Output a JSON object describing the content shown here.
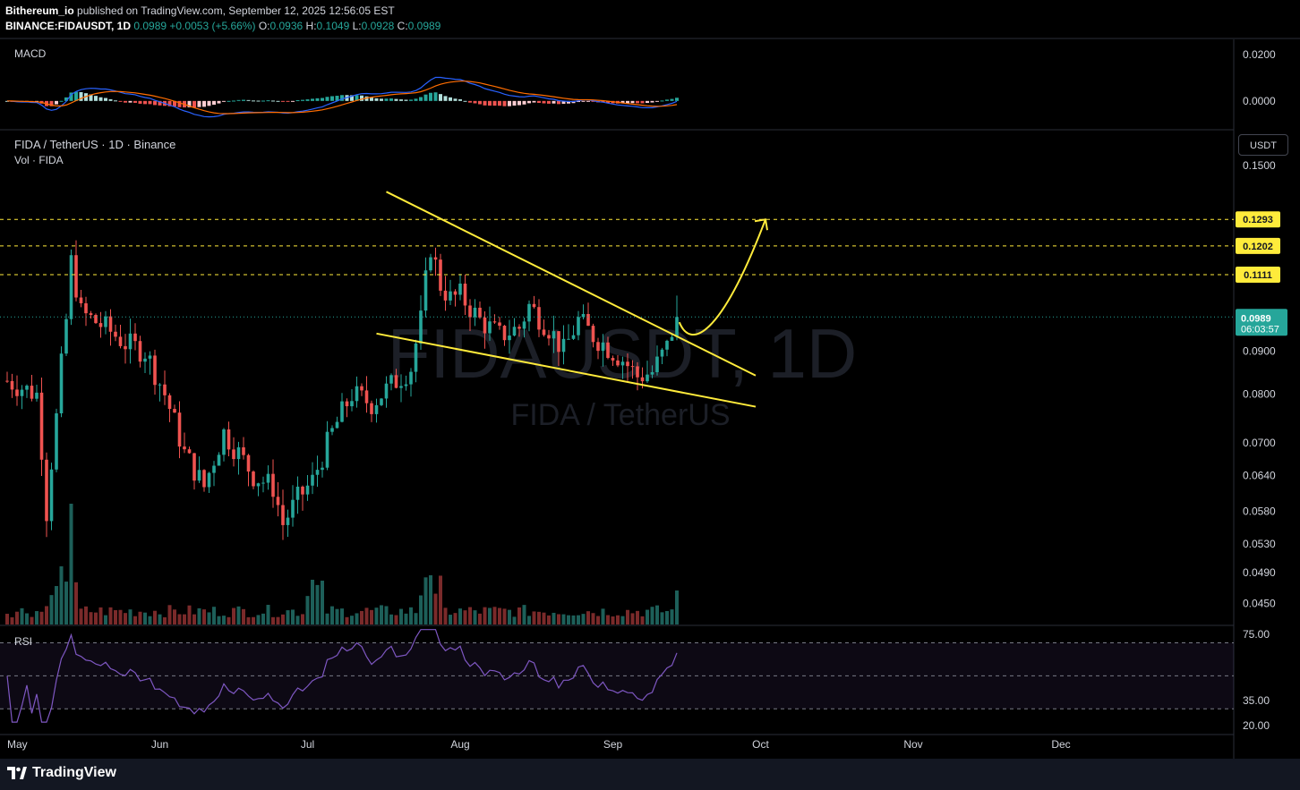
{
  "header": {
    "publisher": "Bithereum_io",
    "published_text": " published on TradingView.com, September 12, 2025 12:56:05 EST",
    "symbol": "BINANCE:FIDAUSDT, 1D",
    "last": "0.0989",
    "change": "+0.0053 (+5.66%)",
    "o_label": "O:",
    "o": "0.0936",
    "h_label": "H:",
    "h": "0.1049",
    "l_label": "L:",
    "l": "0.0928",
    "c_label": "C:",
    "c": "0.0989"
  },
  "main_pane": {
    "title": "FIDA / TetherUS · 1D · Binance",
    "vol_label": "Vol · FIDA",
    "currency_button": "USDT",
    "watermark_symbol": "FIDAUSDT, 1D",
    "watermark_name": "FIDA / TetherUS"
  },
  "macd_pane": {
    "title": "MACD"
  },
  "rsi_pane": {
    "title": "RSI"
  },
  "footer": {
    "brand": "TradingView"
  },
  "colors": {
    "up": "#26a69a",
    "down": "#ef5350",
    "annotation": "#ffeb3b",
    "macd_line": "#2962ff",
    "signal_line": "#ff6d00",
    "rsi_line": "#7e57c2",
    "current_price_bg": "#26a69a"
  },
  "chart_data": [
    {
      "type": "candlestick",
      "symbol": "FIDAUSDT",
      "interval": "1D",
      "scale": "log",
      "ylim": [
        0.0425,
        0.165
      ],
      "y_ticks": [
        "0.1500",
        "0.0900",
        "0.0800",
        "0.0700",
        "0.0640",
        "0.0580",
        "0.0530",
        "0.0490",
        "0.0450"
      ],
      "x_ticks": [
        "May",
        "Jun",
        "Jul",
        "Aug",
        "Sep",
        "Oct",
        "Nov",
        "Dec"
      ],
      "horizontal_levels": [
        "0.1293",
        "0.1202",
        "0.1111"
      ],
      "current_price": "0.0989",
      "countdown": "06:03:57",
      "annotations": {
        "pattern": "falling wedge",
        "upper_line": [
          [
            "2025-07-17",
            0.1395
          ],
          [
            "2025-09-30",
            0.0842
          ]
        ],
        "lower_line": [
          [
            "2025-07-15",
            0.0945
          ],
          [
            "2025-09-30",
            0.0773
          ]
        ],
        "projection_arrow_to": 0.1293
      },
      "volume": "shown"
    },
    {
      "type": "line",
      "name": "MACD",
      "y_ticks": [
        "0.0200",
        "0.0000"
      ],
      "ylim": [
        -0.012,
        0.0265
      ]
    },
    {
      "type": "line",
      "name": "RSI",
      "y_ticks": [
        "75.00",
        "35.00",
        "20.00"
      ],
      "ylim": [
        15,
        80
      ],
      "bands": [
        30,
        70
      ]
    }
  ]
}
